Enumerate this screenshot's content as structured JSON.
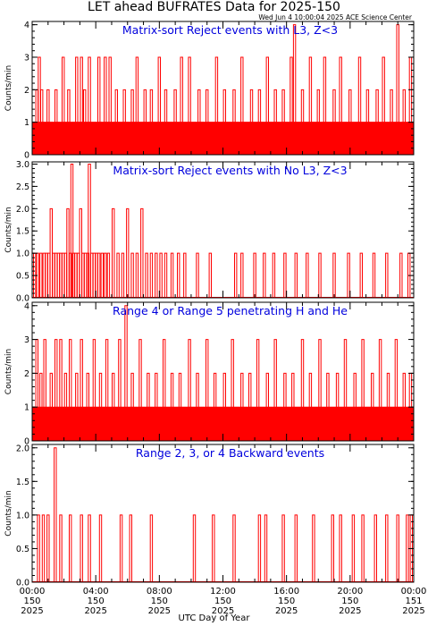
{
  "title": "LET ahead BUFRATES Data for 2025-150",
  "timestamp": "Wed Jun  4 10:00:04 2025 ACE Science Center",
  "xlabel": "UTC Day of Year",
  "x_ticks": [
    {
      "time": "00:00",
      "doy": "150",
      "year": "2025"
    },
    {
      "time": "04:00",
      "doy": "150",
      "year": "2025"
    },
    {
      "time": "08:00",
      "doy": "150",
      "year": "2025"
    },
    {
      "time": "12:00",
      "doy": "150",
      "year": "2025"
    },
    {
      "time": "16:00",
      "doy": "150",
      "year": "2025"
    },
    {
      "time": "20:00",
      "doy": "150",
      "year": "2025"
    },
    {
      "time": "00:00",
      "doy": "151",
      "year": "2025"
    }
  ],
  "colors": {
    "series": "#ff0000",
    "panel_title": "#0000dd",
    "axes": "#000000"
  },
  "chart_data": [
    {
      "type": "line",
      "title": "Matrix-sort Reject events with L3, Z<3",
      "ylabel": "Counts/min",
      "xlim": [
        0,
        24
      ],
      "ylim": [
        0,
        4.1
      ],
      "yticks": [
        0,
        1,
        2,
        3,
        4
      ],
      "ytick_labels": [
        "0",
        "1",
        "2",
        "3",
        "4"
      ],
      "baseline": 1,
      "peaks": [
        {
          "x": 0.3,
          "y": 2
        },
        {
          "x": 0.45,
          "y": 3
        },
        {
          "x": 0.6,
          "y": 2
        },
        {
          "x": 1.0,
          "y": 2
        },
        {
          "x": 1.5,
          "y": 2
        },
        {
          "x": 1.95,
          "y": 3
        },
        {
          "x": 2.3,
          "y": 2
        },
        {
          "x": 2.8,
          "y": 3
        },
        {
          "x": 3.1,
          "y": 3
        },
        {
          "x": 3.3,
          "y": 2
        },
        {
          "x": 3.6,
          "y": 3
        },
        {
          "x": 4.2,
          "y": 3
        },
        {
          "x": 4.6,
          "y": 3
        },
        {
          "x": 4.9,
          "y": 3
        },
        {
          "x": 5.3,
          "y": 2
        },
        {
          "x": 5.8,
          "y": 2
        },
        {
          "x": 6.3,
          "y": 2
        },
        {
          "x": 6.6,
          "y": 3
        },
        {
          "x": 7.1,
          "y": 2
        },
        {
          "x": 7.5,
          "y": 2
        },
        {
          "x": 8.0,
          "y": 3
        },
        {
          "x": 8.4,
          "y": 2
        },
        {
          "x": 9.0,
          "y": 2
        },
        {
          "x": 9.4,
          "y": 3
        },
        {
          "x": 9.9,
          "y": 3
        },
        {
          "x": 10.5,
          "y": 2
        },
        {
          "x": 11.0,
          "y": 2
        },
        {
          "x": 11.6,
          "y": 3
        },
        {
          "x": 12.1,
          "y": 2
        },
        {
          "x": 12.7,
          "y": 2
        },
        {
          "x": 13.2,
          "y": 3
        },
        {
          "x": 13.8,
          "y": 2
        },
        {
          "x": 14.3,
          "y": 2
        },
        {
          "x": 14.8,
          "y": 3
        },
        {
          "x": 15.3,
          "y": 2
        },
        {
          "x": 15.8,
          "y": 2
        },
        {
          "x": 16.3,
          "y": 3
        },
        {
          "x": 16.5,
          "y": 4
        },
        {
          "x": 17.0,
          "y": 2
        },
        {
          "x": 17.5,
          "y": 3
        },
        {
          "x": 18.0,
          "y": 2
        },
        {
          "x": 18.4,
          "y": 3
        },
        {
          "x": 19.0,
          "y": 2
        },
        {
          "x": 19.4,
          "y": 3
        },
        {
          "x": 20.0,
          "y": 2
        },
        {
          "x": 20.6,
          "y": 3
        },
        {
          "x": 21.1,
          "y": 2
        },
        {
          "x": 21.7,
          "y": 2
        },
        {
          "x": 22.1,
          "y": 3
        },
        {
          "x": 22.6,
          "y": 2
        },
        {
          "x": 23.0,
          "y": 4
        },
        {
          "x": 23.4,
          "y": 2
        },
        {
          "x": 23.8,
          "y": 3
        }
      ]
    },
    {
      "type": "line",
      "title": "Matrix-sort Reject events with No L3, Z<3",
      "ylabel": "Counts/min",
      "xlim": [
        0,
        24
      ],
      "ylim": [
        0,
        3.05
      ],
      "yticks": [
        0,
        0.5,
        1,
        1.5,
        2,
        2.5,
        3
      ],
      "ytick_labels": [
        "0.0",
        "0.5",
        "1.0",
        "1.5",
        "2.0",
        "2.5",
        "3.0"
      ],
      "baseline": 0,
      "peaks": [
        {
          "x": 0.15,
          "y": 1
        },
        {
          "x": 0.35,
          "y": 1
        },
        {
          "x": 0.55,
          "y": 1
        },
        {
          "x": 0.75,
          "y": 1
        },
        {
          "x": 0.9,
          "y": 1
        },
        {
          "x": 1.05,
          "y": 1
        },
        {
          "x": 1.2,
          "y": 2
        },
        {
          "x": 1.35,
          "y": 1
        },
        {
          "x": 1.5,
          "y": 1
        },
        {
          "x": 1.65,
          "y": 1
        },
        {
          "x": 1.8,
          "y": 1
        },
        {
          "x": 1.95,
          "y": 1
        },
        {
          "x": 2.1,
          "y": 1
        },
        {
          "x": 2.25,
          "y": 2
        },
        {
          "x": 2.4,
          "y": 1
        },
        {
          "x": 2.5,
          "y": 3
        },
        {
          "x": 2.6,
          "y": 1
        },
        {
          "x": 2.75,
          "y": 1
        },
        {
          "x": 2.9,
          "y": 1
        },
        {
          "x": 3.05,
          "y": 2
        },
        {
          "x": 3.2,
          "y": 1
        },
        {
          "x": 3.35,
          "y": 1
        },
        {
          "x": 3.5,
          "y": 1
        },
        {
          "x": 3.6,
          "y": 3
        },
        {
          "x": 3.75,
          "y": 1
        },
        {
          "x": 3.9,
          "y": 1
        },
        {
          "x": 4.05,
          "y": 1
        },
        {
          "x": 4.2,
          "y": 1
        },
        {
          "x": 4.4,
          "y": 1
        },
        {
          "x": 4.6,
          "y": 1
        },
        {
          "x": 4.8,
          "y": 1
        },
        {
          "x": 5.1,
          "y": 2
        },
        {
          "x": 5.4,
          "y": 1
        },
        {
          "x": 5.7,
          "y": 1
        },
        {
          "x": 6.0,
          "y": 2
        },
        {
          "x": 6.3,
          "y": 1
        },
        {
          "x": 6.6,
          "y": 1
        },
        {
          "x": 6.9,
          "y": 2
        },
        {
          "x": 7.2,
          "y": 1
        },
        {
          "x": 7.5,
          "y": 1
        },
        {
          "x": 7.8,
          "y": 1
        },
        {
          "x": 8.1,
          "y": 1
        },
        {
          "x": 8.4,
          "y": 1
        },
        {
          "x": 8.8,
          "y": 1
        },
        {
          "x": 9.2,
          "y": 1
        },
        {
          "x": 9.6,
          "y": 1
        },
        {
          "x": 10.4,
          "y": 1
        },
        {
          "x": 11.2,
          "y": 1
        },
        {
          "x": 12.8,
          "y": 1
        },
        {
          "x": 13.2,
          "y": 1
        },
        {
          "x": 14.0,
          "y": 1
        },
        {
          "x": 14.6,
          "y": 1
        },
        {
          "x": 15.2,
          "y": 1
        },
        {
          "x": 15.9,
          "y": 1
        },
        {
          "x": 16.6,
          "y": 1
        },
        {
          "x": 17.3,
          "y": 1
        },
        {
          "x": 18.1,
          "y": 1
        },
        {
          "x": 19.0,
          "y": 1
        },
        {
          "x": 19.9,
          "y": 1
        },
        {
          "x": 20.7,
          "y": 1
        },
        {
          "x": 21.5,
          "y": 1
        },
        {
          "x": 22.3,
          "y": 1
        },
        {
          "x": 23.2,
          "y": 1
        },
        {
          "x": 23.7,
          "y": 1
        }
      ]
    },
    {
      "type": "line",
      "title": "Range 4 or Range 5 penetrating H and He",
      "ylabel": "Counts/min",
      "xlim": [
        0,
        24
      ],
      "ylim": [
        0,
        4.1
      ],
      "yticks": [
        0,
        1,
        2,
        3,
        4
      ],
      "ytick_labels": [
        "0",
        "1",
        "2",
        "3",
        "4"
      ],
      "baseline": 1,
      "peaks": [
        {
          "x": 0.3,
          "y": 3
        },
        {
          "x": 0.55,
          "y": 2
        },
        {
          "x": 0.8,
          "y": 3
        },
        {
          "x": 1.2,
          "y": 2
        },
        {
          "x": 1.5,
          "y": 3
        },
        {
          "x": 1.8,
          "y": 3
        },
        {
          "x": 2.1,
          "y": 2
        },
        {
          "x": 2.4,
          "y": 3
        },
        {
          "x": 2.8,
          "y": 2
        },
        {
          "x": 3.1,
          "y": 3
        },
        {
          "x": 3.5,
          "y": 2
        },
        {
          "x": 3.9,
          "y": 3
        },
        {
          "x": 4.3,
          "y": 2
        },
        {
          "x": 4.7,
          "y": 3
        },
        {
          "x": 5.1,
          "y": 2
        },
        {
          "x": 5.5,
          "y": 3
        },
        {
          "x": 5.9,
          "y": 4
        },
        {
          "x": 6.3,
          "y": 2
        },
        {
          "x": 6.8,
          "y": 3
        },
        {
          "x": 7.3,
          "y": 2
        },
        {
          "x": 7.8,
          "y": 2
        },
        {
          "x": 8.3,
          "y": 3
        },
        {
          "x": 8.8,
          "y": 2
        },
        {
          "x": 9.3,
          "y": 2
        },
        {
          "x": 9.9,
          "y": 3
        },
        {
          "x": 10.4,
          "y": 2
        },
        {
          "x": 11.0,
          "y": 3
        },
        {
          "x": 11.5,
          "y": 2
        },
        {
          "x": 12.1,
          "y": 2
        },
        {
          "x": 12.6,
          "y": 3
        },
        {
          "x": 13.2,
          "y": 2
        },
        {
          "x": 13.7,
          "y": 2
        },
        {
          "x": 14.2,
          "y": 3
        },
        {
          "x": 14.8,
          "y": 2
        },
        {
          "x": 15.3,
          "y": 3
        },
        {
          "x": 15.9,
          "y": 2
        },
        {
          "x": 16.4,
          "y": 2
        },
        {
          "x": 17.0,
          "y": 3
        },
        {
          "x": 17.5,
          "y": 2
        },
        {
          "x": 18.1,
          "y": 3
        },
        {
          "x": 18.6,
          "y": 2
        },
        {
          "x": 19.2,
          "y": 2
        },
        {
          "x": 19.7,
          "y": 3
        },
        {
          "x": 20.3,
          "y": 2
        },
        {
          "x": 20.8,
          "y": 3
        },
        {
          "x": 21.4,
          "y": 2
        },
        {
          "x": 21.9,
          "y": 3
        },
        {
          "x": 22.4,
          "y": 2
        },
        {
          "x": 22.9,
          "y": 3
        },
        {
          "x": 23.4,
          "y": 2
        },
        {
          "x": 23.8,
          "y": 2
        }
      ]
    },
    {
      "type": "line",
      "title": "Range 2, 3, or 4 Backward events",
      "ylabel": "Counts/min",
      "xlim": [
        0,
        24
      ],
      "ylim": [
        0,
        2.05
      ],
      "yticks": [
        0,
        0.5,
        1,
        1.5,
        2
      ],
      "ytick_labels": [
        "0.0",
        "0.5",
        "1.0",
        "1.5",
        "2.0"
      ],
      "baseline": 0,
      "peaks": [
        {
          "x": 0.4,
          "y": 1
        },
        {
          "x": 0.7,
          "y": 1
        },
        {
          "x": 1.0,
          "y": 1
        },
        {
          "x": 1.45,
          "y": 2
        },
        {
          "x": 1.8,
          "y": 1
        },
        {
          "x": 2.4,
          "y": 1
        },
        {
          "x": 3.1,
          "y": 1
        },
        {
          "x": 3.6,
          "y": 1
        },
        {
          "x": 4.3,
          "y": 1
        },
        {
          "x": 5.6,
          "y": 1
        },
        {
          "x": 6.2,
          "y": 1
        },
        {
          "x": 7.5,
          "y": 1
        },
        {
          "x": 10.2,
          "y": 1
        },
        {
          "x": 11.4,
          "y": 1
        },
        {
          "x": 12.7,
          "y": 1
        },
        {
          "x": 14.3,
          "y": 1
        },
        {
          "x": 14.7,
          "y": 1
        },
        {
          "x": 15.8,
          "y": 1
        },
        {
          "x": 16.6,
          "y": 1
        },
        {
          "x": 17.7,
          "y": 1
        },
        {
          "x": 18.9,
          "y": 1
        },
        {
          "x": 19.4,
          "y": 1
        },
        {
          "x": 20.2,
          "y": 1
        },
        {
          "x": 20.8,
          "y": 1
        },
        {
          "x": 21.6,
          "y": 1
        },
        {
          "x": 22.3,
          "y": 1
        },
        {
          "x": 23.0,
          "y": 1
        },
        {
          "x": 23.6,
          "y": 1
        },
        {
          "x": 23.85,
          "y": 1
        }
      ]
    }
  ]
}
